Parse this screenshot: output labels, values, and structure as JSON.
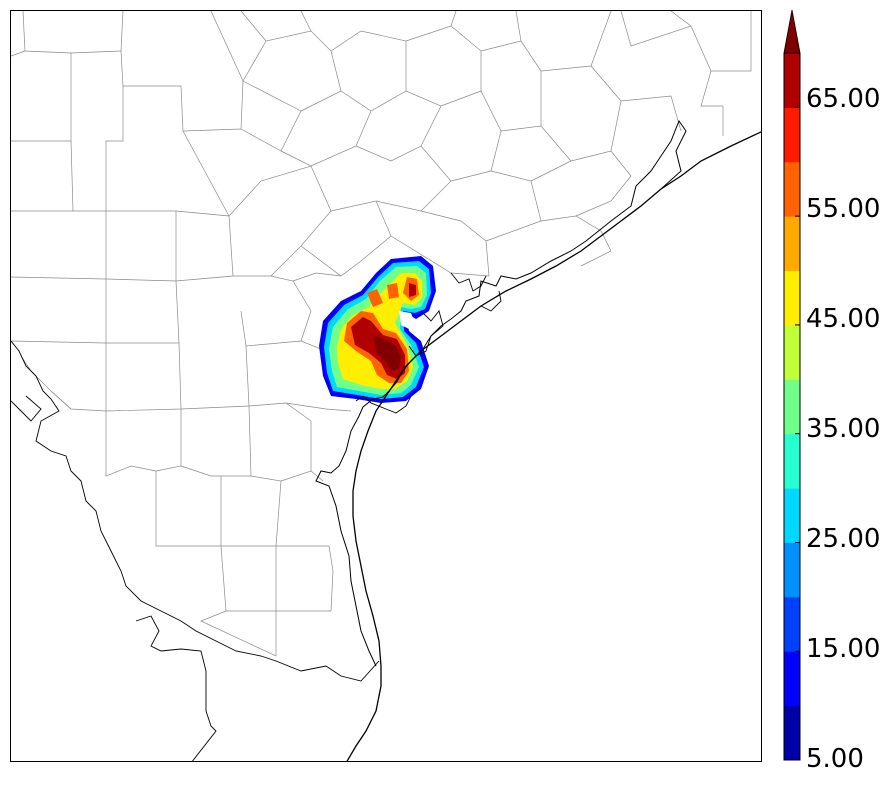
{
  "map": {
    "basemap": "south-texas-gulf-coast-counties",
    "field": "precipitation-rate-contours",
    "colors": {
      "county_lines": "#8a8a8a",
      "coastline": "#000000",
      "frame": "#000000"
    }
  },
  "colorbar": {
    "levels": [
      "5.00",
      "10.00",
      "15.00",
      "20.00",
      "25.00",
      "30.00",
      "35.00",
      "40.00",
      "45.00",
      "50.00",
      "55.00",
      "60.00",
      "65.00",
      "70.00"
    ],
    "tick_labels": [
      "5.00",
      "15.00",
      "25.00",
      "35.00",
      "45.00",
      "55.00",
      "65.00"
    ],
    "extend": "max",
    "colors": [
      "#0000a8",
      "#0000ff",
      "#0040ff",
      "#0090ff",
      "#00d8ff",
      "#28ffd0",
      "#70ff88",
      "#c0ff38",
      "#ffee00",
      "#ffaa00",
      "#ff6200",
      "#ff1a00",
      "#b00000",
      "#800000"
    ]
  }
}
